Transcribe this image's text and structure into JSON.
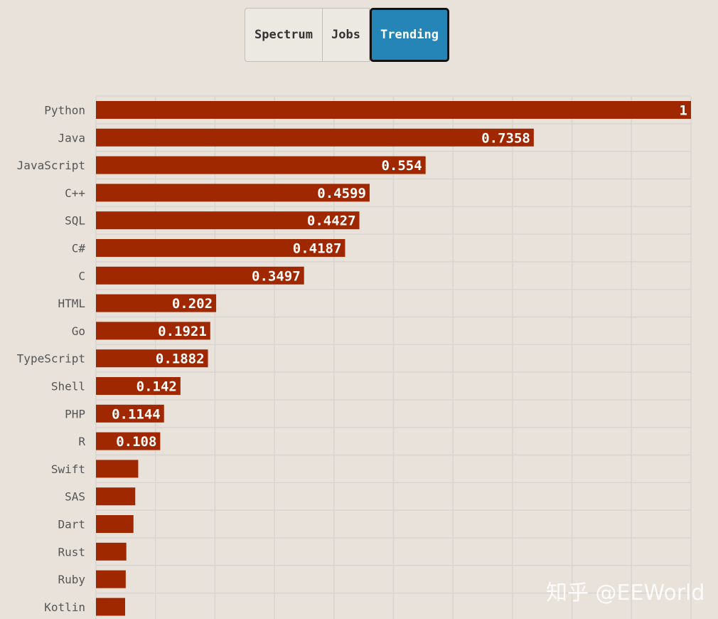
{
  "tabs": [
    {
      "label": "Spectrum",
      "active": false
    },
    {
      "label": "Jobs",
      "active": false
    },
    {
      "label": "Trending",
      "active": true
    }
  ],
  "colors": {
    "bar": "#a02800",
    "active_tab": "#2485b6",
    "background": "#e8e2da",
    "grid": "#d8d4cf"
  },
  "watermark": "知乎 @EEWorld",
  "chart_data": {
    "type": "bar",
    "orientation": "horizontal",
    "xlim": [
      0,
      1
    ],
    "grid": true,
    "categories": [
      "Python",
      "Java",
      "JavaScript",
      "C++",
      "SQL",
      "C#",
      "C",
      "HTML",
      "Go",
      "TypeScript",
      "Shell",
      "PHP",
      "R",
      "Swift",
      "SAS",
      "Dart",
      "Rust",
      "Ruby",
      "Kotlin"
    ],
    "values": [
      1,
      0.7358,
      0.554,
      0.4599,
      0.4427,
      0.4187,
      0.3497,
      0.202,
      0.1921,
      0.1882,
      0.142,
      0.1144,
      0.108,
      0.071,
      0.066,
      0.063,
      0.051,
      0.05,
      0.049
    ],
    "value_labels": [
      "1",
      "0.7358",
      "0.554",
      "0.4599",
      "0.4427",
      "0.4187",
      "0.3497",
      "0.202",
      "0.1921",
      "0.1882",
      "0.142",
      "0.1144",
      "0.108",
      "",
      "",
      "",
      "",
      "",
      ""
    ]
  }
}
